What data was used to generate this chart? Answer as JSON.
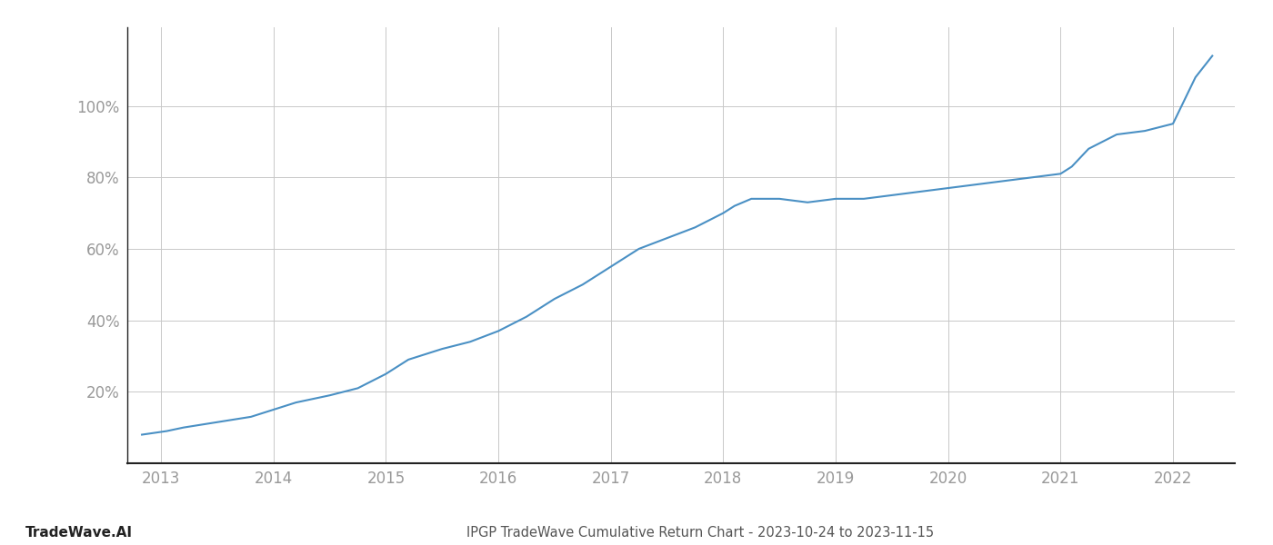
{
  "title": "IPGP TradeWave Cumulative Return Chart - 2023-10-24 to 2023-11-15",
  "watermark": "TradeWave.AI",
  "line_color": "#4a90c4",
  "background_color": "#ffffff",
  "grid_color": "#c8c8c8",
  "x_years": [
    2013,
    2014,
    2015,
    2016,
    2017,
    2018,
    2019,
    2020,
    2021,
    2022
  ],
  "x_data": [
    2012.83,
    2013.05,
    2013.2,
    2013.4,
    2013.6,
    2013.8,
    2014.0,
    2014.2,
    2014.5,
    2014.75,
    2015.0,
    2015.2,
    2015.5,
    2015.75,
    2016.0,
    2016.25,
    2016.5,
    2016.75,
    2017.0,
    2017.25,
    2017.5,
    2017.75,
    2018.0,
    2018.1,
    2018.25,
    2018.5,
    2018.75,
    2019.0,
    2019.25,
    2019.5,
    2019.75,
    2020.0,
    2020.25,
    2020.5,
    2020.75,
    2021.0,
    2021.1,
    2021.25,
    2021.5,
    2021.75,
    2022.0,
    2022.2,
    2022.35
  ],
  "y_data": [
    8,
    9,
    10,
    11,
    12,
    13,
    15,
    17,
    19,
    21,
    25,
    29,
    32,
    34,
    37,
    41,
    46,
    50,
    55,
    60,
    63,
    66,
    70,
    72,
    74,
    74,
    73,
    74,
    74,
    75,
    76,
    77,
    78,
    79,
    80,
    81,
    83,
    88,
    92,
    93,
    95,
    108,
    114
  ],
  "yticks": [
    20,
    40,
    60,
    80,
    100
  ],
  "ytick_labels": [
    "20%",
    "40%",
    "60%",
    "80%",
    "100%"
  ],
  "ylim": [
    0,
    122
  ],
  "xlim": [
    2012.7,
    2022.55
  ],
  "title_fontsize": 10.5,
  "watermark_fontsize": 11,
  "tick_fontsize": 12,
  "tick_color": "#999999",
  "spine_color": "#222222",
  "footer_text_color": "#555555"
}
